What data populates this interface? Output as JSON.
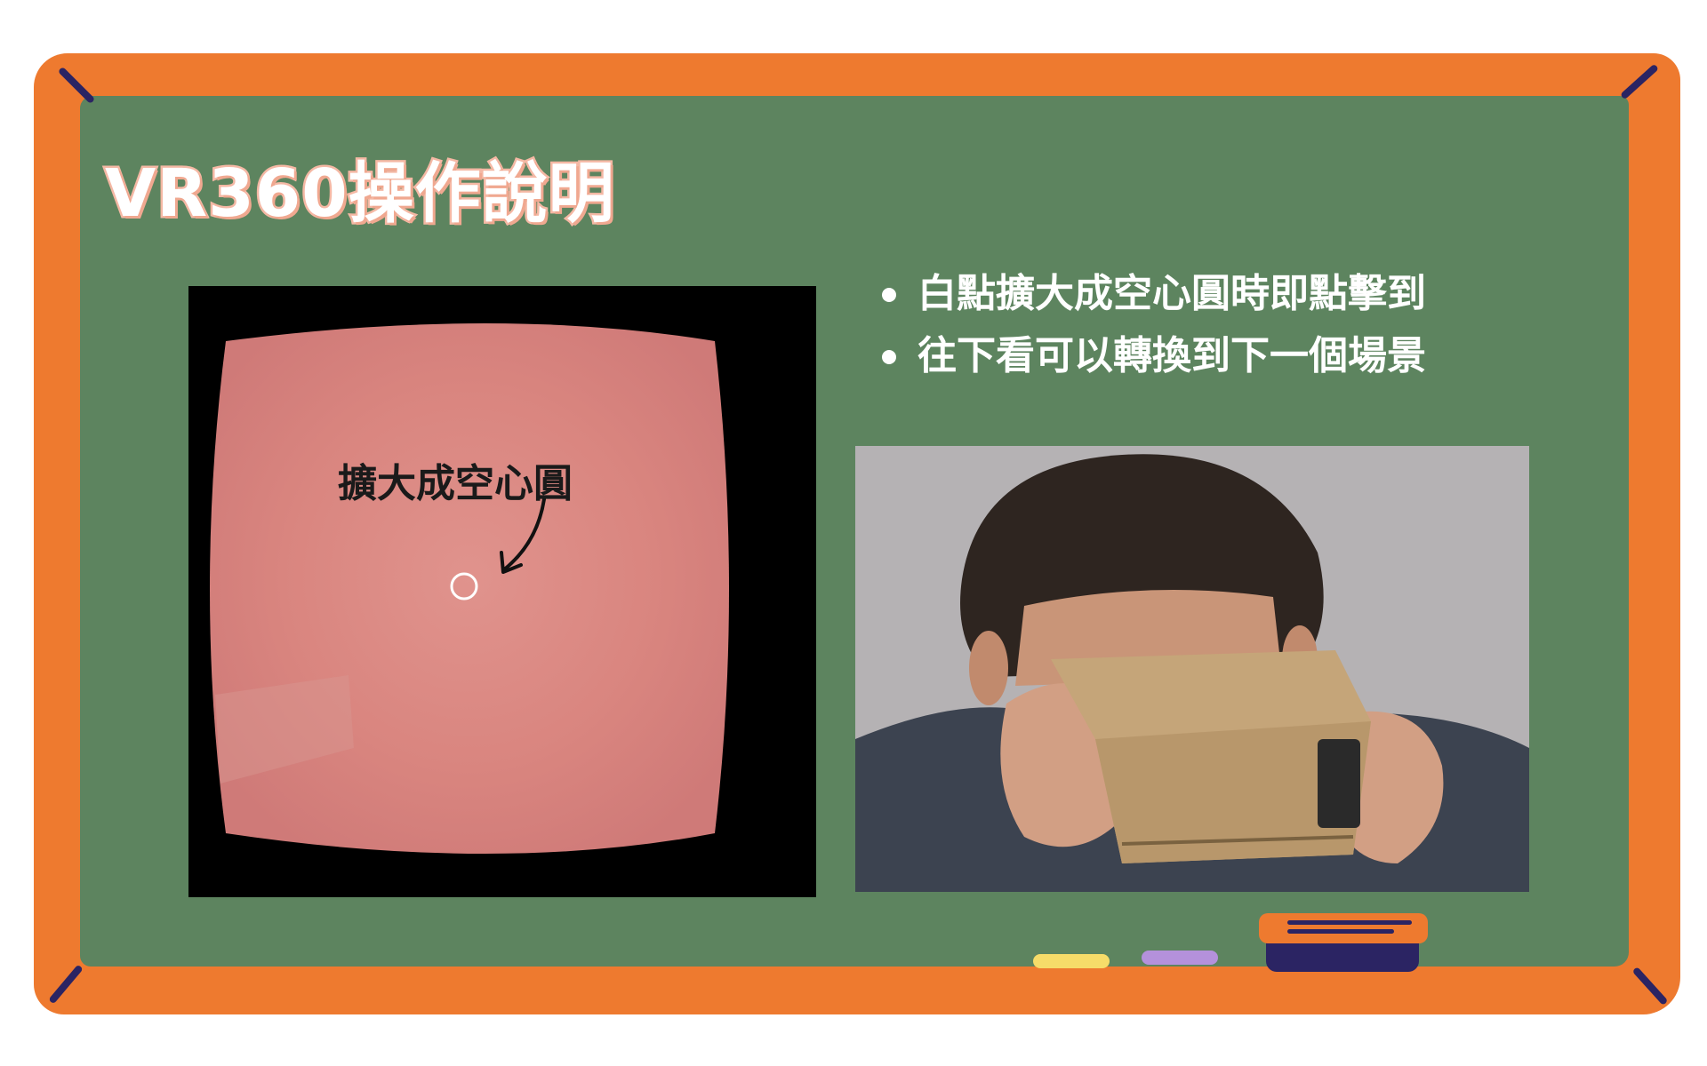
{
  "title": "VR360操作說明",
  "vr_view": {
    "callout_label": "擴大成空心圓"
  },
  "bullets": [
    {
      "text": "白點擴大成空心圓時即點擊到"
    },
    {
      "text": "往下看可以轉換到下一個場景"
    }
  ],
  "colors": {
    "frame": "#ee7a2f",
    "board": "#5d845f",
    "dark_accent": "#2b2463",
    "vr_pink": "#d9847f",
    "chalk_yellow": "#f6dc69",
    "chalk_purple": "#b491db"
  }
}
